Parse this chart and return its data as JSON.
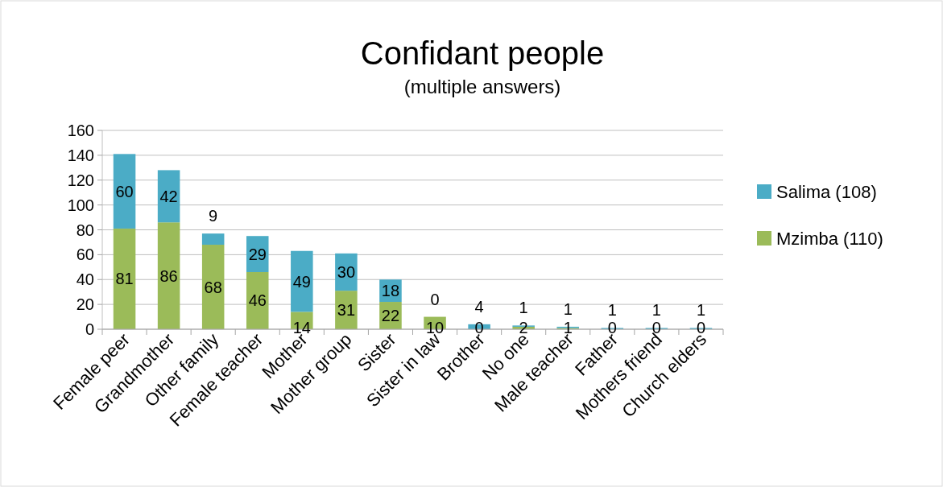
{
  "chart_data": {
    "type": "bar",
    "title": "Confidant people",
    "subtitle": "(multiple answers)",
    "stacked": true,
    "categories": [
      "Female peer",
      "Grandmother",
      "Other family",
      "Female teacher",
      "Mother",
      "Mother group",
      "Sister",
      "Sister in law",
      "Brother",
      "No one",
      "Male teacher",
      "Father",
      "Mothers friend",
      "Church elders"
    ],
    "series": [
      {
        "name": "Mzimba (110)",
        "color": "#9bbb59",
        "values": [
          81,
          86,
          68,
          46,
          14,
          31,
          22,
          10,
          0,
          2,
          1,
          0,
          0,
          0
        ]
      },
      {
        "name": "Salima (108)",
        "color": "#4bacc6",
        "values": [
          60,
          42,
          9,
          29,
          49,
          30,
          18,
          0,
          4,
          1,
          1,
          1,
          1,
          1
        ]
      }
    ],
    "ylim": [
      0,
      160
    ],
    "yticks": [
      0,
      20,
      40,
      60,
      80,
      100,
      120,
      140,
      160
    ],
    "grid": "y",
    "legend": "right",
    "data_labels": true
  }
}
